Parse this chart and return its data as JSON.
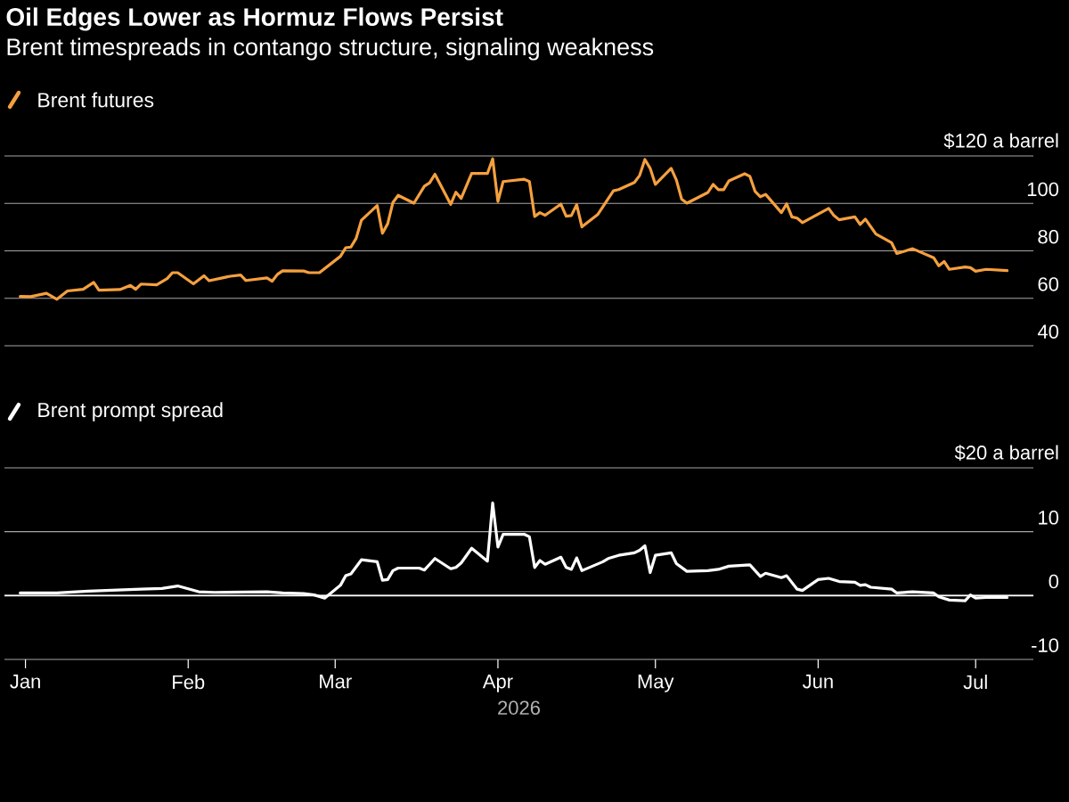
{
  "chart_data": [
    {
      "type": "line",
      "title": "Oil Edges Lower as Hormuz Flows Persist",
      "subtitle": "Brent timespreads in contango structure, signaling weakness",
      "xlim": [
        "2025-12-28",
        "2026-07-12"
      ],
      "ylim": [
        40,
        120
      ],
      "yticks": [
        40,
        60,
        80,
        100,
        {
          "value": 120,
          "label": "$120 a barrel"
        }
      ],
      "grid": "y",
      "legend": "top left",
      "tick_labels": "y",
      "series": [
        {
          "name": "Brent futures",
          "color": "#f5a03e",
          "x": [
            "2025-12-31",
            "2026-01-02",
            "2026-01-05",
            "2026-01-07",
            "2026-01-09",
            "2026-01-12",
            "2026-01-14",
            "2026-01-15",
            "2026-01-19",
            "2026-01-21",
            "2026-01-22",
            "2026-01-23",
            "2026-01-26",
            "2026-01-28",
            "2026-01-29",
            "2026-01-30",
            "2026-02-02",
            "2026-02-04",
            "2026-02-05",
            "2026-02-09",
            "2026-02-11",
            "2026-02-12",
            "2026-02-16",
            "2026-02-17",
            "2026-02-18",
            "2026-02-19",
            "2026-02-23",
            "2026-02-24",
            "2026-02-26",
            "2026-03-02",
            "2026-03-03",
            "2026-03-04",
            "2026-03-05",
            "2026-03-06",
            "2026-03-09",
            "2026-03-10",
            "2026-03-11",
            "2026-03-12",
            "2026-03-13",
            "2026-03-16",
            "2026-03-18",
            "2026-03-19",
            "2026-03-20",
            "2026-03-23",
            "2026-03-24",
            "2026-03-25",
            "2026-03-27",
            "2026-03-30",
            "2026-03-31",
            "2026-04-01",
            "2026-04-02",
            "2026-04-06",
            "2026-04-07",
            "2026-04-08",
            "2026-04-09",
            "2026-04-10",
            "2026-04-13",
            "2026-04-14",
            "2026-04-15",
            "2026-04-16",
            "2026-04-17",
            "2026-04-20",
            "2026-04-23",
            "2026-04-24",
            "2026-04-27",
            "2026-04-28",
            "2026-04-29",
            "2026-04-30",
            "2026-05-01",
            "2026-05-04",
            "2026-05-05",
            "2026-05-06",
            "2026-05-07",
            "2026-05-11",
            "2026-05-12",
            "2026-05-13",
            "2026-05-14",
            "2026-05-15",
            "2026-05-18",
            "2026-05-19",
            "2026-05-20",
            "2026-05-21",
            "2026-05-22",
            "2026-05-25",
            "2026-05-26",
            "2026-05-27",
            "2026-05-28",
            "2026-05-29",
            "2026-06-03",
            "2026-06-04",
            "2026-06-05",
            "2026-06-08",
            "2026-06-09",
            "2026-06-10",
            "2026-06-12",
            "2026-06-15",
            "2026-06-16",
            "2026-06-19",
            "2026-06-23",
            "2026-06-24",
            "2026-06-25",
            "2026-06-26",
            "2026-06-29",
            "2026-06-30",
            "2026-07-01",
            "2026-07-03",
            "2026-07-07"
          ],
          "values": [
            60.8,
            60.7,
            62.1,
            59.6,
            63.1,
            63.8,
            66.7,
            63.4,
            63.7,
            65.4,
            63.8,
            66,
            65.7,
            68.3,
            70.8,
            70.8,
            66.1,
            69.5,
            67.4,
            69.3,
            69.8,
            67.5,
            68.6,
            67.2,
            70.1,
            71.6,
            71.5,
            70.8,
            70.8,
            77.7,
            81.3,
            81.6,
            85.3,
            92.9,
            99.1,
            87.4,
            91.4,
            100.4,
            103.4,
            100.1,
            107.3,
            108.7,
            112.3,
            99.6,
            104.7,
            102.1,
            112.6,
            112.6,
            118.8,
            100.8,
            109.2,
            110.2,
            109.2,
            94.5,
            96.1,
            95,
            99.7,
            94.6,
            94.9,
            99.5,
            90.1,
            95.3,
            105.3,
            105.8,
            108.8,
            111.8,
            118.5,
            114.8,
            108,
            114.8,
            109.8,
            101.8,
            100.1,
            104.6,
            108,
            105.8,
            105.8,
            109.5,
            112.5,
            111.4,
            105,
            102.8,
            103.8,
            96.1,
            99.8,
            94.3,
            93.8,
            91.9,
            97.9,
            94.9,
            93.1,
            94.3,
            91.1,
            93.4,
            87.1,
            83.4,
            78.9,
            80.9,
            77.1,
            73.7,
            75.5,
            72.2,
            73.2,
            72.9,
            71.4,
            72.2,
            71.7
          ]
        }
      ]
    },
    {
      "type": "line",
      "xlabel": "2026",
      "xlim": [
        "2025-12-28",
        "2026-07-12"
      ],
      "xticks": [
        {
          "value": "2026-01-01",
          "label": "Jan"
        },
        {
          "value": "2026-02-01",
          "label": "Feb"
        },
        {
          "value": "2026-03-01",
          "label": "Mar"
        },
        {
          "value": "2026-04-01",
          "label": "Apr"
        },
        {
          "value": "2026-05-01",
          "label": "May"
        },
        {
          "value": "2026-06-01",
          "label": "Jun"
        },
        {
          "value": "2026-07-01",
          "label": "Jul"
        }
      ],
      "ylim": [
        -10,
        20
      ],
      "yticks": [
        -10,
        0,
        10,
        {
          "value": 20,
          "label": "$20 a barrel"
        }
      ],
      "grid": "y",
      "legend": "top left",
      "ref_lines": [
        {
          "axis": "y",
          "value": 0,
          "color": "#ffffff"
        }
      ],
      "series": [
        {
          "name": "Brent prompt spread",
          "color": "#ffffff",
          "x": [
            "2025-12-31",
            "2026-01-07",
            "2026-01-13",
            "2026-01-23",
            "2026-01-27",
            "2026-01-30",
            "2026-02-03",
            "2026-02-06",
            "2026-02-16",
            "2026-02-19",
            "2026-02-23",
            "2026-02-25",
            "2026-02-27",
            "2026-03-02",
            "2026-03-03",
            "2026-03-04",
            "2026-03-06",
            "2026-03-09",
            "2026-03-10",
            "2026-03-11",
            "2026-03-12",
            "2026-03-13",
            "2026-03-17",
            "2026-03-18",
            "2026-03-19",
            "2026-03-20",
            "2026-03-23",
            "2026-03-24",
            "2026-03-25",
            "2026-03-27",
            "2026-03-30",
            "2026-03-31",
            "2026-04-01",
            "2026-04-02",
            "2026-04-06",
            "2026-04-07",
            "2026-04-08",
            "2026-04-09",
            "2026-04-10",
            "2026-04-13",
            "2026-04-14",
            "2026-04-15",
            "2026-04-16",
            "2026-04-17",
            "2026-04-21",
            "2026-04-22",
            "2026-04-24",
            "2026-04-27",
            "2026-04-28",
            "2026-04-29",
            "2026-04-30",
            "2026-05-01",
            "2026-05-04",
            "2026-05-05",
            "2026-05-07",
            "2026-05-11",
            "2026-05-13",
            "2026-05-15",
            "2026-05-19",
            "2026-05-21",
            "2026-05-22",
            "2026-05-25",
            "2026-05-26",
            "2026-05-28",
            "2026-05-29",
            "2026-06-01",
            "2026-06-03",
            "2026-06-05",
            "2026-06-08",
            "2026-06-09",
            "2026-06-10",
            "2026-06-11",
            "2026-06-15",
            "2026-06-16",
            "2026-06-19",
            "2026-06-23",
            "2026-06-24",
            "2026-06-26",
            "2026-06-29",
            "2026-06-30",
            "2026-07-01",
            "2026-07-03",
            "2026-07-07"
          ],
          "values": [
            0.4,
            0.4,
            0.7,
            1,
            1.1,
            1.5,
            0.6,
            0.5,
            0.6,
            0.4,
            0.3,
            0.1,
            -0.4,
            1.6,
            3.1,
            3.4,
            5.6,
            5.3,
            2.4,
            2.5,
            3.9,
            4.3,
            4.3,
            4,
            4.9,
            5.8,
            4.2,
            4.4,
            5.1,
            7.4,
            5.4,
            14.5,
            7.6,
            9.6,
            9.6,
            9.2,
            4.4,
            5.5,
            4.9,
            6,
            4.4,
            4.1,
            5.9,
            3.9,
            5.3,
            5.8,
            6.3,
            6.7,
            7.1,
            7.8,
            3.6,
            6.3,
            6.7,
            5,
            3.8,
            3.9,
            4.1,
            4.6,
            4.8,
            3,
            3.5,
            2.8,
            3.1,
            1,
            0.8,
            2.5,
            2.7,
            2.2,
            2.1,
            1.6,
            1.7,
            1.3,
            1,
            0.4,
            0.6,
            0.4,
            -0.2,
            -0.7,
            -0.8,
            0.1,
            -0.4,
            -0.3,
            -0.3
          ]
        }
      ]
    }
  ]
}
